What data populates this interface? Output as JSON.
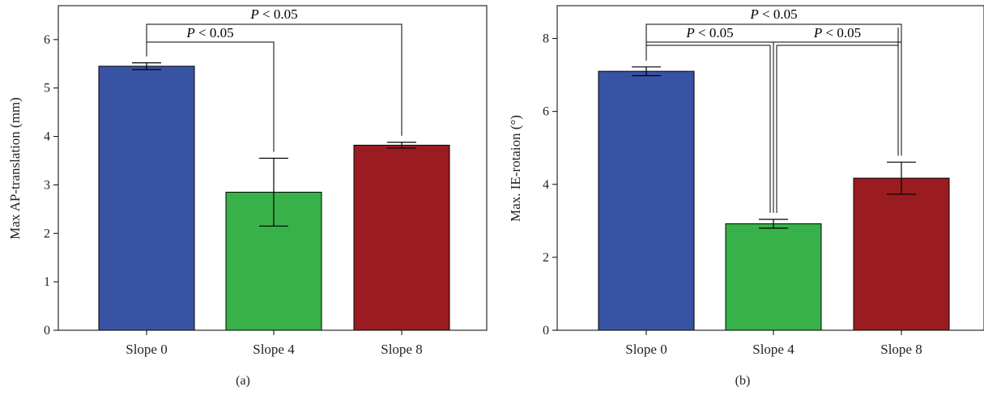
{
  "chart_data": [
    {
      "type": "bar",
      "panel_label": "(a)",
      "categories": [
        "Slope 0",
        "Slope 4",
        "Slope 8"
      ],
      "values": [
        5.45,
        2.85,
        3.82
      ],
      "errors": [
        0.07,
        0.7,
        0.06
      ],
      "colors": [
        "#3953a4",
        "#39b14a",
        "#9b1c20"
      ],
      "ylabel": "Max AP-translation (mm)",
      "xlabel": "",
      "ylim": [
        0,
        6.7
      ],
      "yticks": [
        0,
        1,
        2,
        3,
        4,
        5,
        6
      ],
      "significance": [
        {
          "from": 0,
          "to": 1,
          "label_italic": "P",
          "label_rest": " < 0.05"
        },
        {
          "from": 0,
          "to": 2,
          "label_italic": "P",
          "label_rest": " < 0.05"
        }
      ]
    },
    {
      "type": "bar",
      "panel_label": "(b)",
      "categories": [
        "Slope 0",
        "Slope 4",
        "Slope 8"
      ],
      "values": [
        7.1,
        2.92,
        4.17
      ],
      "errors": [
        0.12,
        0.12,
        0.44
      ],
      "colors": [
        "#3953a4",
        "#39b14a",
        "#9b1c20"
      ],
      "ylabel": "Max. IE-rotaion (°)",
      "xlabel": "",
      "ylim": [
        0,
        8.9
      ],
      "yticks": [
        0,
        2,
        4,
        6,
        8
      ],
      "significance": [
        {
          "from": 0,
          "to": 1,
          "label_italic": "P",
          "label_rest": " < 0.05"
        },
        {
          "from": 1,
          "to": 2,
          "label_italic": "P",
          "label_rest": " < 0.05"
        },
        {
          "from": 0,
          "to": 2,
          "label_italic": "P",
          "label_rest": " < 0.05"
        }
      ]
    }
  ]
}
